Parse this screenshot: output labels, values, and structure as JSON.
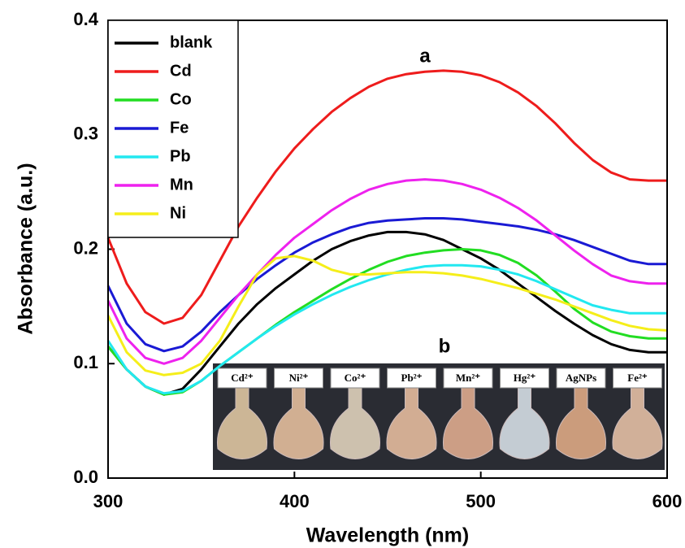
{
  "chart_data": {
    "type": "line",
    "x_label": "Wavelength (nm)",
    "y_label": "Absorbance (a.u.)",
    "annotations": [
      "a",
      "b"
    ],
    "inset_labels": [
      "Cd²⁺",
      "Ni²⁺",
      "Co²⁺",
      "Pb²⁺",
      "Mn²⁺",
      "Hg²⁺",
      "AgNPs",
      "Fe²⁺"
    ],
    "xlim": [
      300,
      600
    ],
    "xticks": [
      300,
      400,
      500,
      600
    ],
    "ylim": [
      0,
      0.4
    ],
    "yticks": [
      {
        "value": 0,
        "label": "0.0"
      },
      0.1,
      0.2,
      0.3,
      0.4
    ],
    "legend": "upper left",
    "x": [
      300,
      310,
      320,
      330,
      340,
      350,
      360,
      370,
      380,
      390,
      400,
      410,
      420,
      430,
      440,
      450,
      460,
      470,
      480,
      490,
      500,
      510,
      520,
      530,
      540,
      550,
      560,
      570,
      580,
      590,
      600
    ],
    "series": [
      {
        "name": "blank",
        "color": "#000000",
        "values": [
          0.115,
          0.095,
          0.08,
          0.073,
          0.078,
          0.095,
          0.115,
          0.135,
          0.152,
          0.166,
          0.178,
          0.19,
          0.2,
          0.207,
          0.212,
          0.215,
          0.215,
          0.213,
          0.208,
          0.2,
          0.192,
          0.182,
          0.17,
          0.158,
          0.146,
          0.135,
          0.125,
          0.117,
          0.112,
          0.11,
          0.11
        ]
      },
      {
        "name": "Cd",
        "color": "#ee1c1c",
        "values": [
          0.21,
          0.17,
          0.145,
          0.135,
          0.14,
          0.16,
          0.19,
          0.22,
          0.245,
          0.268,
          0.288,
          0.305,
          0.32,
          0.332,
          0.342,
          0.349,
          0.353,
          0.355,
          0.356,
          0.355,
          0.352,
          0.346,
          0.337,
          0.325,
          0.31,
          0.293,
          0.278,
          0.267,
          0.261,
          0.26,
          0.26
        ]
      },
      {
        "name": "Co",
        "color": "#22dd22",
        "values": [
          0.115,
          0.095,
          0.08,
          0.073,
          0.075,
          0.085,
          0.098,
          0.11,
          0.122,
          0.134,
          0.145,
          0.155,
          0.165,
          0.174,
          0.182,
          0.189,
          0.194,
          0.197,
          0.199,
          0.2,
          0.199,
          0.195,
          0.188,
          0.177,
          0.163,
          0.148,
          0.136,
          0.128,
          0.124,
          0.122,
          0.122
        ]
      },
      {
        "name": "Fe",
        "color": "#1a1ad4",
        "values": [
          0.168,
          0.135,
          0.117,
          0.111,
          0.115,
          0.128,
          0.145,
          0.16,
          0.174,
          0.186,
          0.197,
          0.206,
          0.213,
          0.219,
          0.223,
          0.225,
          0.226,
          0.227,
          0.227,
          0.226,
          0.224,
          0.222,
          0.22,
          0.217,
          0.213,
          0.208,
          0.202,
          0.196,
          0.19,
          0.187,
          0.187
        ]
      },
      {
        "name": "Pb",
        "color": "#22e8f0",
        "values": [
          0.12,
          0.095,
          0.08,
          0.074,
          0.076,
          0.085,
          0.098,
          0.11,
          0.122,
          0.133,
          0.143,
          0.152,
          0.16,
          0.167,
          0.173,
          0.178,
          0.182,
          0.185,
          0.186,
          0.186,
          0.185,
          0.182,
          0.178,
          0.172,
          0.165,
          0.158,
          0.151,
          0.147,
          0.144,
          0.144,
          0.144
        ]
      },
      {
        "name": "Mn",
        "color": "#ee22ee",
        "values": [
          0.155,
          0.122,
          0.105,
          0.1,
          0.105,
          0.12,
          0.14,
          0.16,
          0.178,
          0.195,
          0.21,
          0.222,
          0.234,
          0.244,
          0.252,
          0.257,
          0.26,
          0.261,
          0.26,
          0.257,
          0.252,
          0.245,
          0.236,
          0.225,
          0.212,
          0.199,
          0.187,
          0.177,
          0.172,
          0.17,
          0.17
        ]
      },
      {
        "name": "Ni",
        "color": "#f5ee1a",
        "values": [
          0.142,
          0.11,
          0.094,
          0.09,
          0.092,
          0.1,
          0.12,
          0.15,
          0.178,
          0.192,
          0.194,
          0.19,
          0.182,
          0.178,
          0.178,
          0.179,
          0.18,
          0.18,
          0.179,
          0.177,
          0.174,
          0.17,
          0.166,
          0.161,
          0.156,
          0.15,
          0.144,
          0.138,
          0.133,
          0.13,
          0.129
        ]
      }
    ]
  }
}
